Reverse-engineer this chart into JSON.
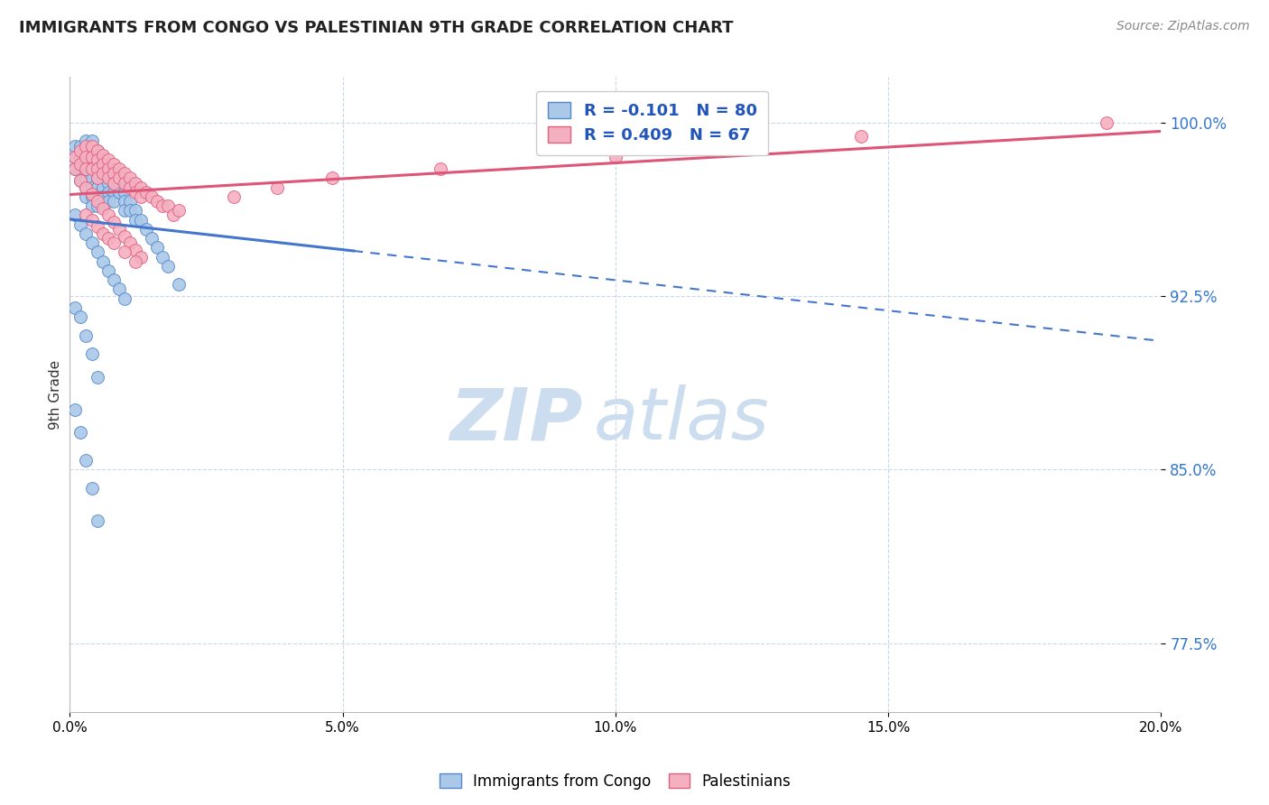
{
  "title": "IMMIGRANTS FROM CONGO VS PALESTINIAN 9TH GRADE CORRELATION CHART",
  "source": "Source: ZipAtlas.com",
  "ylabel": "9th Grade",
  "y_ticks": [
    0.775,
    0.85,
    0.925,
    1.0
  ],
  "y_tick_labels": [
    "77.5%",
    "85.0%",
    "92.5%",
    "100.0%"
  ],
  "xlim": [
    0.0,
    0.2
  ],
  "ylim": [
    0.745,
    1.02
  ],
  "congo_R": -0.101,
  "congo_N": 80,
  "palest_R": 0.409,
  "palest_N": 67,
  "congo_color": "#aac8e8",
  "palest_color": "#f5b0c0",
  "congo_edge_color": "#5588cc",
  "palest_edge_color": "#e06080",
  "congo_line_color": "#4477cc",
  "palest_line_color": "#dd5577",
  "legend_label_congo": "Immigrants from Congo",
  "legend_label_palest": "Palestinians",
  "watermark_zip": "ZIP",
  "watermark_atlas": "atlas",
  "watermark_color": "#ccddf0",
  "congo_x": [
    0.001,
    0.001,
    0.001,
    0.002,
    0.002,
    0.002,
    0.002,
    0.003,
    0.003,
    0.003,
    0.003,
    0.003,
    0.003,
    0.003,
    0.004,
    0.004,
    0.004,
    0.004,
    0.004,
    0.004,
    0.004,
    0.004,
    0.005,
    0.005,
    0.005,
    0.005,
    0.005,
    0.005,
    0.005,
    0.006,
    0.006,
    0.006,
    0.006,
    0.006,
    0.006,
    0.007,
    0.007,
    0.007,
    0.007,
    0.007,
    0.008,
    0.008,
    0.008,
    0.008,
    0.009,
    0.009,
    0.01,
    0.01,
    0.01,
    0.011,
    0.011,
    0.012,
    0.012,
    0.013,
    0.014,
    0.015,
    0.016,
    0.017,
    0.018,
    0.02,
    0.001,
    0.002,
    0.003,
    0.004,
    0.005,
    0.006,
    0.007,
    0.008,
    0.009,
    0.01,
    0.001,
    0.002,
    0.003,
    0.004,
    0.005,
    0.001,
    0.002,
    0.003,
    0.004,
    0.005
  ],
  "congo_y": [
    0.99,
    0.985,
    0.98,
    0.99,
    0.985,
    0.98,
    0.975,
    0.992,
    0.988,
    0.984,
    0.98,
    0.976,
    0.972,
    0.968,
    0.992,
    0.988,
    0.984,
    0.98,
    0.976,
    0.972,
    0.968,
    0.964,
    0.988,
    0.984,
    0.98,
    0.976,
    0.972,
    0.968,
    0.964,
    0.985,
    0.98,
    0.976,
    0.972,
    0.968,
    0.964,
    0.982,
    0.978,
    0.974,
    0.97,
    0.966,
    0.978,
    0.974,
    0.97,
    0.966,
    0.974,
    0.97,
    0.97,
    0.966,
    0.962,
    0.966,
    0.962,
    0.962,
    0.958,
    0.958,
    0.954,
    0.95,
    0.946,
    0.942,
    0.938,
    0.93,
    0.96,
    0.956,
    0.952,
    0.948,
    0.944,
    0.94,
    0.936,
    0.932,
    0.928,
    0.924,
    0.92,
    0.916,
    0.908,
    0.9,
    0.89,
    0.876,
    0.866,
    0.854,
    0.842,
    0.828
  ],
  "palest_x": [
    0.001,
    0.001,
    0.002,
    0.002,
    0.003,
    0.003,
    0.003,
    0.004,
    0.004,
    0.004,
    0.005,
    0.005,
    0.005,
    0.005,
    0.006,
    0.006,
    0.006,
    0.007,
    0.007,
    0.007,
    0.008,
    0.008,
    0.008,
    0.009,
    0.009,
    0.01,
    0.01,
    0.011,
    0.011,
    0.012,
    0.012,
    0.013,
    0.013,
    0.014,
    0.015,
    0.016,
    0.017,
    0.018,
    0.019,
    0.02,
    0.002,
    0.003,
    0.004,
    0.005,
    0.006,
    0.007,
    0.008,
    0.009,
    0.01,
    0.011,
    0.012,
    0.013,
    0.003,
    0.004,
    0.005,
    0.006,
    0.007,
    0.008,
    0.01,
    0.012,
    0.03,
    0.038,
    0.048,
    0.068,
    0.1,
    0.145,
    0.19
  ],
  "palest_y": [
    0.985,
    0.98,
    0.988,
    0.982,
    0.99,
    0.985,
    0.98,
    0.99,
    0.985,
    0.98,
    0.988,
    0.984,
    0.98,
    0.976,
    0.986,
    0.982,
    0.978,
    0.984,
    0.98,
    0.976,
    0.982,
    0.978,
    0.974,
    0.98,
    0.976,
    0.978,
    0.974,
    0.976,
    0.972,
    0.974,
    0.97,
    0.972,
    0.968,
    0.97,
    0.968,
    0.966,
    0.964,
    0.964,
    0.96,
    0.962,
    0.975,
    0.972,
    0.969,
    0.966,
    0.963,
    0.96,
    0.957,
    0.954,
    0.951,
    0.948,
    0.945,
    0.942,
    0.96,
    0.958,
    0.955,
    0.952,
    0.95,
    0.948,
    0.944,
    0.94,
    0.968,
    0.972,
    0.976,
    0.98,
    0.985,
    0.994,
    1.0
  ]
}
